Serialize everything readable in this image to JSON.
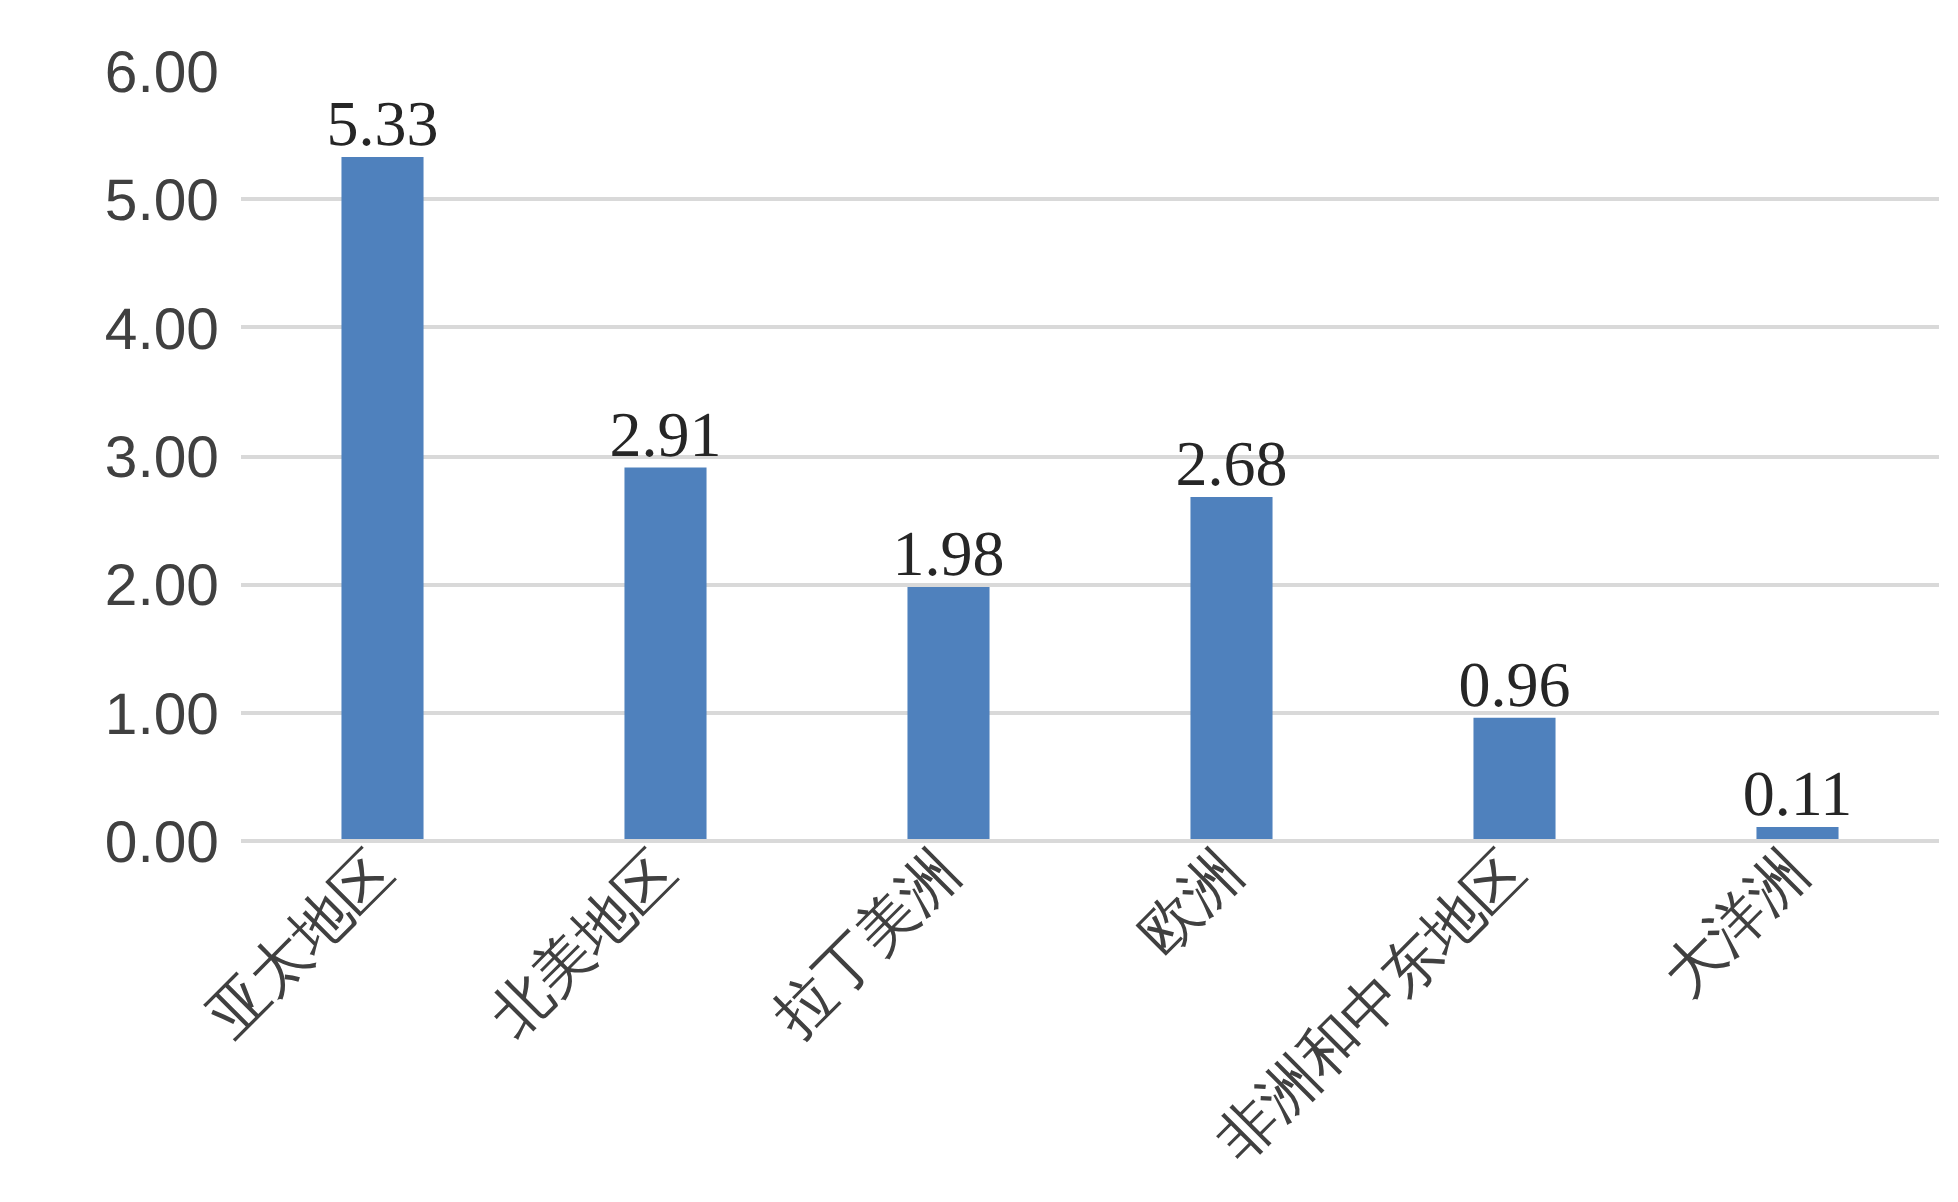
{
  "chart_data": {
    "type": "bar",
    "categories": [
      "亚太地区",
      "北美地区",
      "拉丁美洲",
      "欧洲",
      "非洲和中东地区",
      "大洋洲"
    ],
    "values": [
      5.33,
      2.91,
      1.98,
      2.68,
      0.96,
      0.11
    ],
    "color": "#4f81bd",
    "ylim": [
      0,
      6
    ],
    "yticks": [
      {
        "value": 0,
        "label": "0.00"
      },
      {
        "value": 1,
        "label": "1.00"
      },
      {
        "value": 2,
        "label": "2.00"
      },
      {
        "value": 3,
        "label": "3.00"
      },
      {
        "value": 4,
        "label": "4.00"
      },
      {
        "value": 5,
        "label": "5.00"
      },
      {
        "value": 6,
        "label": "6.00"
      }
    ],
    "grid": "y",
    "data_labels": true
  }
}
